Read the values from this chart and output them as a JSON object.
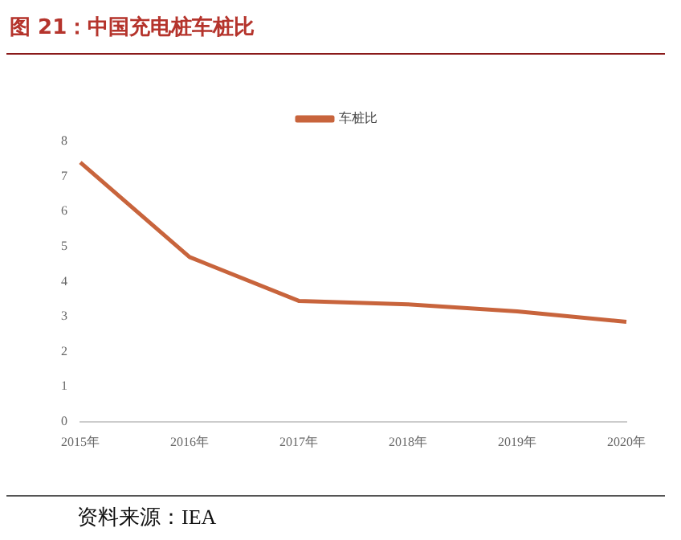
{
  "chart_data": {
    "type": "line",
    "title": "图 21：中国充电桩车桩比",
    "categories": [
      "2015年",
      "2016年",
      "2017年",
      "2018年",
      "2019年",
      "2020年"
    ],
    "series": [
      {
        "name": "车桩比",
        "color": "#c8643c",
        "values": [
          7.4,
          4.7,
          3.45,
          3.35,
          3.15,
          2.85
        ]
      }
    ],
    "ylim": [
      0,
      8
    ],
    "yticks": [
      0,
      1,
      2,
      3,
      4,
      5,
      6,
      7,
      8
    ],
    "grid": false,
    "legend": "top",
    "marker": "none",
    "annotations": [
      "资料来源：IEA"
    ]
  }
}
